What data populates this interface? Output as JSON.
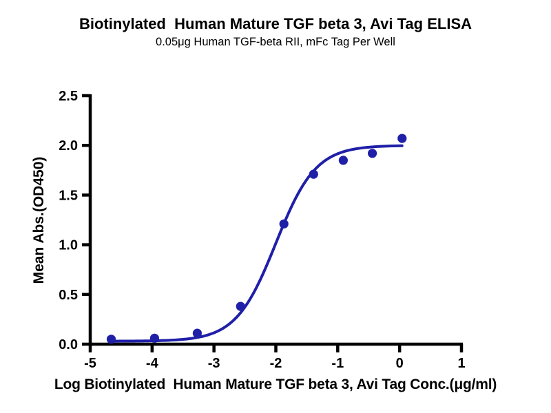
{
  "figure": {
    "background": "#ffffff"
  },
  "chart_data": {
    "type": "scatter",
    "title": "Biotinylated  Human Mature TGF beta 3, Avi Tag ELISA",
    "subtitle": "0.05μg Human TGF-beta RII, mFc Tag Per Well",
    "xlabel": "Log Biotinylated  Human Mature TGF beta 3, Avi Tag Conc.(μg/ml)",
    "ylabel": "Mean Abs.(OD450)",
    "xlim": [
      -5,
      1
    ],
    "ylim": [
      0,
      2.5
    ],
    "x_ticks": [
      -5,
      -4,
      -3,
      -2,
      -1,
      0,
      1
    ],
    "x_tick_labels": [
      "-5",
      "-4",
      "-3",
      "-2",
      "-1",
      "0",
      "1"
    ],
    "y_ticks": [
      0,
      0.5,
      1.0,
      1.5,
      2.0,
      2.5
    ],
    "y_tick_labels": [
      "0.0",
      "0.5",
      "1.0",
      "1.5",
      "2.0",
      "2.5"
    ],
    "grid": false,
    "legend": "none",
    "axis_color": "#000000",
    "series": [
      {
        "name": "Biotinylated Human Mature TGF beta 3, Avi Tag",
        "marker": "circle",
        "color": "#1f1fa8",
        "x": [
          -4.66,
          -3.96,
          -3.27,
          -2.57,
          -1.87,
          -1.39,
          -0.91,
          -0.44,
          0.04
        ],
        "y": [
          0.05,
          0.06,
          0.11,
          0.38,
          1.21,
          1.71,
          1.85,
          1.92,
          2.07
        ]
      }
    ],
    "fit_curve": {
      "model": "4PL",
      "color": "#1f1fa8",
      "bottom": 0.03,
      "top": 2.0,
      "log_ec50": -2.0,
      "hill": 1.35,
      "x_range": [
        -4.66,
        0.04
      ]
    }
  }
}
